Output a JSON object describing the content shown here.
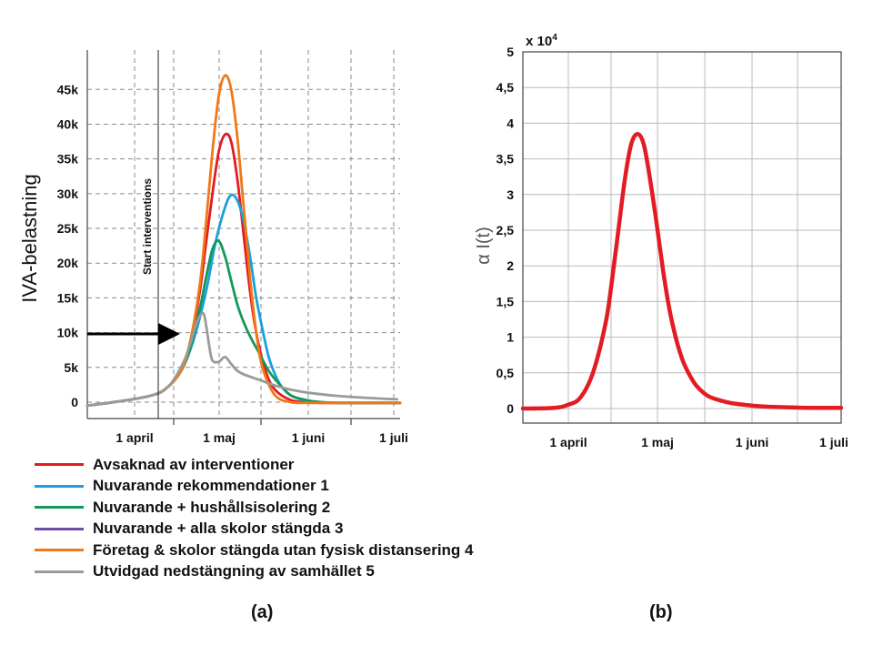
{
  "chart_data": [
    {
      "type": "line",
      "panel_label": "(a)",
      "ylabel": "IVA-belastning",
      "ylim": [
        0,
        47000
      ],
      "yticks": [
        0,
        5000,
        10000,
        15000,
        20000,
        25000,
        30000,
        35000,
        40000,
        45000
      ],
      "yticklabels": [
        "0",
        "5k",
        "10k",
        "15k",
        "20k",
        "25k",
        "30k",
        "35k",
        "40k",
        "45k"
      ],
      "xtick_labels": [
        "1 april",
        "1 maj",
        "1 juni",
        "1 juli"
      ],
      "grid": true,
      "intervention_label": "Start interventions",
      "arrow_level": 10000,
      "legend_position": "below",
      "series": [
        {
          "name": "Avsaknad av interventioner",
          "color": "#e31b23",
          "x": [
            0,
            10,
            20,
            25,
            30,
            33,
            36,
            38,
            40,
            42,
            44,
            46,
            48,
            50,
            52,
            54,
            57,
            60,
            65,
            70,
            75,
            80,
            90,
            100
          ],
          "values": [
            -500,
            100,
            900,
            1900,
            4500,
            8500,
            16000,
            23000,
            30000,
            36000,
            38500,
            37500,
            32000,
            24000,
            16000,
            10000,
            4500,
            1800,
            300,
            0,
            -100,
            -100,
            -100,
            -100
          ]
        },
        {
          "name": "Nuvarande rekommendationer 1",
          "color": "#1aa0dc",
          "x": [
            0,
            10,
            20,
            25,
            30,
            34,
            38,
            41,
            44,
            46,
            48,
            50,
            52,
            54,
            56,
            58,
            60,
            62,
            65,
            70,
            75,
            80,
            90,
            100
          ],
          "values": [
            -500,
            100,
            900,
            1900,
            4500,
            9000,
            16000,
            23000,
            28000,
            29800,
            29000,
            26000,
            21000,
            15000,
            10500,
            6500,
            4000,
            2300,
            1000,
            200,
            0,
            -100,
            -100,
            -100
          ]
        },
        {
          "name": "Nuvarande + hushållsisolering 2",
          "color": "#12985a",
          "x": [
            0,
            10,
            20,
            25,
            30,
            33,
            36,
            38,
            40,
            42,
            44,
            46,
            48,
            50,
            52,
            55,
            58,
            61,
            65,
            70,
            75,
            80,
            90,
            100
          ],
          "values": [
            -500,
            100,
            900,
            1900,
            4500,
            8000,
            13500,
            18000,
            22000,
            23200,
            21000,
            17500,
            14000,
            11500,
            9500,
            7000,
            4500,
            2800,
            1000,
            300,
            0,
            -100,
            -100,
            -100
          ]
        },
        {
          "name": "Nuvarande + alla skolor stängda 3",
          "color": "#6a4fa0",
          "x": [],
          "values": []
        },
        {
          "name": "Företag & skolor stängda utan fysisk distansering 4",
          "color": "#f07818",
          "x": [
            0,
            10,
            20,
            25,
            30,
            33,
            36,
            38,
            40,
            42,
            44,
            46,
            48,
            50,
            52,
            54,
            56,
            60,
            65,
            70,
            75,
            80,
            90,
            100
          ],
          "values": [
            -500,
            100,
            900,
            1900,
            4500,
            9000,
            17000,
            26000,
            36000,
            44000,
            47000,
            45000,
            38000,
            28000,
            18000,
            10000,
            5000,
            1000,
            0,
            -100,
            -100,
            -100,
            -100,
            -100
          ]
        },
        {
          "name": "Utvidgad nedstängning av samhället 5",
          "color": "#9a9a9a",
          "x": [
            0,
            10,
            20,
            25,
            28,
            31,
            33,
            35,
            37,
            38,
            39,
            40,
            42,
            44,
            46,
            48,
            50,
            55,
            60,
            65,
            70,
            80,
            90,
            99
          ],
          "values": [
            -500,
            100,
            900,
            1900,
            3500,
            6000,
            8500,
            11500,
            12800,
            11000,
            8000,
            6000,
            5800,
            6500,
            5500,
            4500,
            4000,
            3200,
            2400,
            1800,
            1400,
            900,
            600,
            400
          ]
        }
      ]
    },
    {
      "type": "line",
      "panel_label": "(b)",
      "ylabel": "α I(t)",
      "scale_label": "x 10",
      "scale_exponent": "4",
      "ylim": [
        0,
        5
      ],
      "yticks": [
        0,
        0.5,
        1,
        1.5,
        2,
        2.5,
        3,
        3.5,
        4,
        4.5,
        5
      ],
      "yticklabels": [
        "0",
        "0,5",
        "1",
        "1,5",
        "2",
        "2,5",
        "3",
        "3,5",
        "4",
        "4,5",
        "5"
      ],
      "xtick_labels": [
        "1 april",
        "1 maj",
        "1 juni",
        "1 juli"
      ],
      "grid": true,
      "series": [
        {
          "color": "#e31b23",
          "x": [
            0,
            10,
            14,
            18,
            22,
            26,
            28,
            30,
            32,
            34,
            36,
            38,
            40,
            42,
            44,
            46,
            48,
            50,
            52,
            54,
            56,
            58,
            60,
            65,
            70,
            75,
            80,
            90,
            100
          ],
          "values": [
            0,
            0.01,
            0.05,
            0.15,
            0.5,
            1.2,
            1.8,
            2.5,
            3.2,
            3.7,
            3.85,
            3.7,
            3.2,
            2.6,
            1.95,
            1.4,
            1.0,
            0.7,
            0.5,
            0.35,
            0.25,
            0.18,
            0.14,
            0.08,
            0.05,
            0.03,
            0.02,
            0.01,
            0.01
          ]
        }
      ]
    }
  ]
}
